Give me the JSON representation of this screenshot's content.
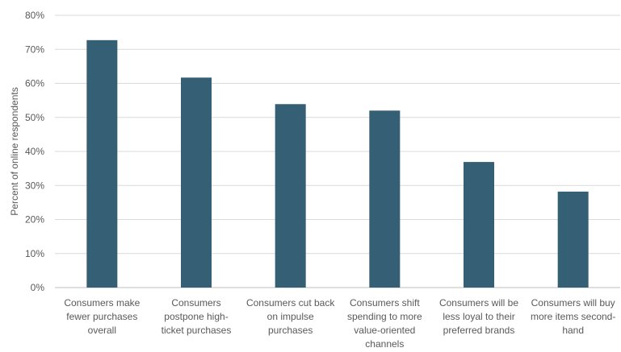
{
  "chart_data": {
    "type": "bar",
    "title": "",
    "xlabel": "",
    "ylabel": "Percent of online respondents",
    "ylim": [
      0,
      80
    ],
    "y_ticks": [
      "0%",
      "10%",
      "20%",
      "30%",
      "40%",
      "50%",
      "60%",
      "70%",
      "80%"
    ],
    "grid": "horizontal",
    "legend": "none",
    "bar_color": "#355F74",
    "grid_color": "#D9D9D9",
    "axis_color": "#BFBFBF",
    "text_color": "#595959",
    "categories": [
      [
        "Consumers make",
        "fewer purchases",
        "overall"
      ],
      [
        "Consumers",
        "postpone high-",
        "ticket purchases"
      ],
      [
        "Consumers cut back",
        "on impulse",
        "purchases"
      ],
      [
        "Consumers shift",
        "spending to more",
        "value-oriented",
        "channels"
      ],
      [
        "Consumers will be",
        "less loyal to their",
        "preferred brands"
      ],
      [
        "Consumers will buy",
        "more items second-",
        "hand"
      ]
    ],
    "values": [
      72.7,
      61.7,
      53.9,
      52.0,
      36.9,
      28.2
    ]
  }
}
